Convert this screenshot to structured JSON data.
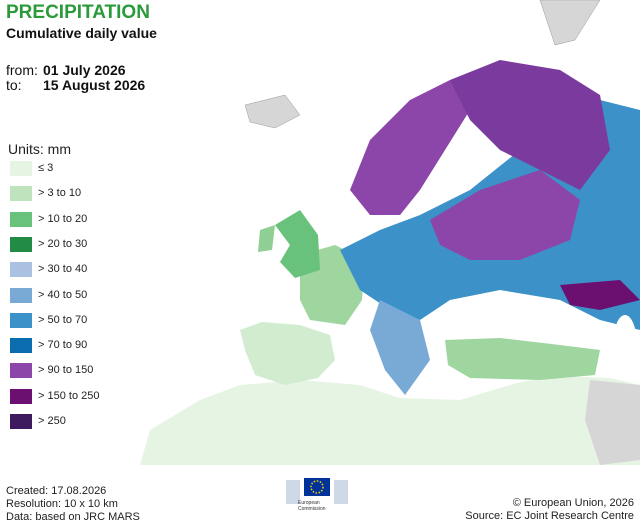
{
  "header": {
    "title": "PRECIPITATION",
    "subtitle": "Cumulative daily value",
    "from_label": "from:",
    "from_date": "01 July 2026",
    "to_label": "to:",
    "to_date": "15 August 2026"
  },
  "legend": {
    "title": "Units: mm",
    "items": [
      {
        "label": "≤ 3",
        "color": "#e6f4e4"
      },
      {
        "label": "> 3 to 10",
        "color": "#bfe3bc"
      },
      {
        "label": "> 10 to 20",
        "color": "#69c27c"
      },
      {
        "label": "> 20 to 30",
        "color": "#228b45"
      },
      {
        "label": "> 30 to 40",
        "color": "#abc1e2"
      },
      {
        "label": "> 40 to 50",
        "color": "#79aad6"
      },
      {
        "label": "> 50 to 70",
        "color": "#3c91c8"
      },
      {
        "label": "> 70 to 90",
        "color": "#0b6cae"
      },
      {
        "label": "> 90 to 150",
        "color": "#8c46a9"
      },
      {
        "label": "> 150 to 250",
        "color": "#6b0f70"
      },
      {
        "label": "> 250",
        "color": "#3e1b5f"
      }
    ]
  },
  "logo": {
    "text": "European Commission"
  },
  "footer": {
    "created": "Created: 17.08.2026",
    "resolution": "Resolution: 10 x 10 km",
    "data": "Data: based on JRC MARS",
    "copyright": "© European Union, 2026",
    "source": "Source: EC Joint Research Centre"
  }
}
